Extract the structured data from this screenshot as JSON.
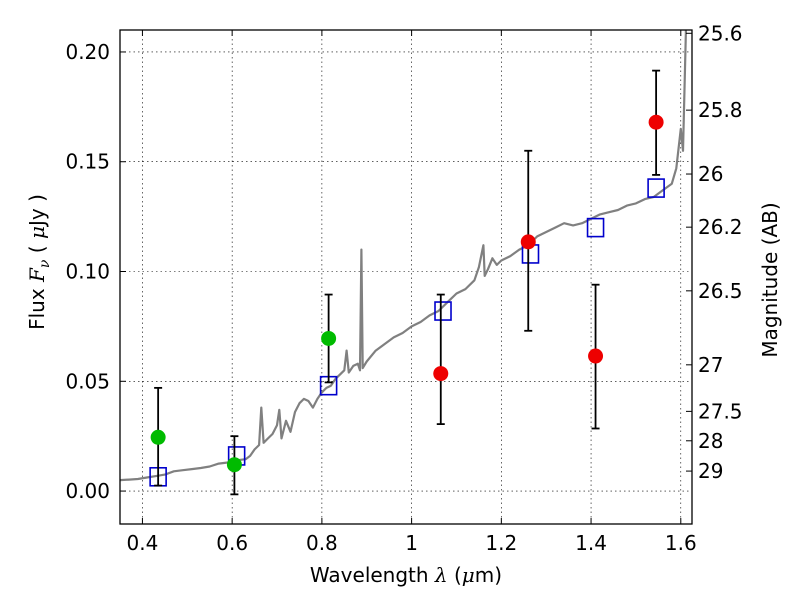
{
  "chart_data": {
    "type": "scatter",
    "title": "",
    "xlabel": {
      "prefix": "Wavelength ",
      "symbol": "λ",
      "open": " (",
      "unit_mu": "μ",
      "unit_rest": "m)"
    },
    "ylabel": {
      "prefix": "Flux ",
      "symbol": "F",
      "sub": "ν",
      "open": " ( ",
      "unit_mu": "μ",
      "unit_rest": "Jy )"
    },
    "ylabel_right": "Magnitude (AB)",
    "xlim": [
      0.35,
      1.625
    ],
    "ylim": [
      -0.015,
      0.21
    ],
    "grid": true,
    "x_ticks": [
      {
        "value": 0.4,
        "label": "0.4"
      },
      {
        "value": 0.6,
        "label": "0.6"
      },
      {
        "value": 0.8,
        "label": "0.8"
      },
      {
        "value": 1.0,
        "label": "1"
      },
      {
        "value": 1.2,
        "label": "1.2"
      },
      {
        "value": 1.4,
        "label": "1.4"
      },
      {
        "value": 1.6,
        "label": "1.6"
      }
    ],
    "y_ticks": [
      {
        "value": 0.0,
        "label": "0.00"
      },
      {
        "value": 0.05,
        "label": "0.05"
      },
      {
        "value": 0.1,
        "label": "0.10"
      },
      {
        "value": 0.15,
        "label": "0.15"
      },
      {
        "value": 0.2,
        "label": "0.20"
      }
    ],
    "right_ticks": [
      {
        "flux": 0.2085,
        "label": "25.6"
      },
      {
        "flux": 0.1735,
        "label": "25.8"
      },
      {
        "flux": 0.1444,
        "label": "26"
      },
      {
        "flux": 0.1202,
        "label": "26.2"
      },
      {
        "flux": 0.0912,
        "label": "26.5"
      },
      {
        "flux": 0.0575,
        "label": "27"
      },
      {
        "flux": 0.0363,
        "label": "27.5"
      },
      {
        "flux": 0.0229,
        "label": "28"
      },
      {
        "flux": 0.0091,
        "label": "29"
      }
    ],
    "series": [
      {
        "kind": "line",
        "color": "#808080",
        "points": [
          [
            0.35,
            0.005
          ],
          [
            0.37,
            0.0052
          ],
          [
            0.39,
            0.0055
          ],
          [
            0.41,
            0.0062
          ],
          [
            0.43,
            0.0068
          ],
          [
            0.45,
            0.0075
          ],
          [
            0.47,
            0.009
          ],
          [
            0.49,
            0.0095
          ],
          [
            0.51,
            0.01
          ],
          [
            0.53,
            0.0105
          ],
          [
            0.55,
            0.0112
          ],
          [
            0.57,
            0.0125
          ],
          [
            0.59,
            0.013
          ],
          [
            0.61,
            0.014
          ],
          [
            0.63,
            0.0145
          ],
          [
            0.64,
            0.016
          ],
          [
            0.65,
            0.019
          ],
          [
            0.66,
            0.021
          ],
          [
            0.665,
            0.038
          ],
          [
            0.67,
            0.022
          ],
          [
            0.68,
            0.024
          ],
          [
            0.69,
            0.026
          ],
          [
            0.7,
            0.03
          ],
          [
            0.705,
            0.037
          ],
          [
            0.71,
            0.024
          ],
          [
            0.72,
            0.032
          ],
          [
            0.73,
            0.027
          ],
          [
            0.74,
            0.036
          ],
          [
            0.75,
            0.04
          ],
          [
            0.76,
            0.042
          ],
          [
            0.77,
            0.041
          ],
          [
            0.78,
            0.038
          ],
          [
            0.79,
            0.042
          ],
          [
            0.8,
            0.045
          ],
          [
            0.81,
            0.047
          ],
          [
            0.82,
            0.048
          ],
          [
            0.83,
            0.051
          ],
          [
            0.84,
            0.053
          ],
          [
            0.85,
            0.055
          ],
          [
            0.855,
            0.064
          ],
          [
            0.86,
            0.054
          ],
          [
            0.87,
            0.057
          ],
          [
            0.88,
            0.058
          ],
          [
            0.885,
            0.055
          ],
          [
            0.888,
            0.11
          ],
          [
            0.891,
            0.056
          ],
          [
            0.9,
            0.059
          ],
          [
            0.92,
            0.064
          ],
          [
            0.94,
            0.067
          ],
          [
            0.96,
            0.07
          ],
          [
            0.98,
            0.072
          ],
          [
            1.0,
            0.075
          ],
          [
            1.02,
            0.077
          ],
          [
            1.04,
            0.08
          ],
          [
            1.06,
            0.082
          ],
          [
            1.08,
            0.086
          ],
          [
            1.1,
            0.09
          ],
          [
            1.12,
            0.092
          ],
          [
            1.14,
            0.096
          ],
          [
            1.15,
            0.102
          ],
          [
            1.16,
            0.112
          ],
          [
            1.163,
            0.098
          ],
          [
            1.17,
            0.101
          ],
          [
            1.18,
            0.106
          ],
          [
            1.19,
            0.103
          ],
          [
            1.2,
            0.105
          ],
          [
            1.22,
            0.107
          ],
          [
            1.24,
            0.11
          ],
          [
            1.26,
            0.112
          ],
          [
            1.28,
            0.116
          ],
          [
            1.3,
            0.118
          ],
          [
            1.32,
            0.12
          ],
          [
            1.34,
            0.122
          ],
          [
            1.36,
            0.121
          ],
          [
            1.38,
            0.122
          ],
          [
            1.4,
            0.124
          ],
          [
            1.42,
            0.126
          ],
          [
            1.44,
            0.127
          ],
          [
            1.46,
            0.128
          ],
          [
            1.48,
            0.13
          ],
          [
            1.5,
            0.131
          ],
          [
            1.52,
            0.133
          ],
          [
            1.54,
            0.134
          ],
          [
            1.56,
            0.137
          ],
          [
            1.58,
            0.14
          ],
          [
            1.59,
            0.147
          ],
          [
            1.6,
            0.165
          ],
          [
            1.605,
            0.155
          ],
          [
            1.612,
            0.215
          ],
          [
            1.62,
            0.21
          ]
        ]
      },
      {
        "kind": "squares",
        "color": "#0000cc",
        "points": [
          [
            0.435,
            0.0065
          ],
          [
            0.61,
            0.016
          ],
          [
            0.815,
            0.048
          ],
          [
            1.07,
            0.082
          ],
          [
            1.265,
            0.108
          ],
          [
            1.41,
            0.12
          ],
          [
            1.545,
            0.138
          ]
        ]
      },
      {
        "kind": "points",
        "color": "#00bb00",
        "points": [
          {
            "x": 0.435,
            "y": 0.0245,
            "lo": 0.0025,
            "hi": 0.047
          },
          {
            "x": 0.605,
            "y": 0.012,
            "lo": -0.0015,
            "hi": 0.025
          },
          {
            "x": 0.815,
            "y": 0.0695,
            "lo": 0.0495,
            "hi": 0.0895
          }
        ]
      },
      {
        "kind": "points",
        "color": "#ee0000",
        "points": [
          {
            "x": 1.065,
            "y": 0.0535,
            "lo": 0.0305,
            "hi": 0.0895
          },
          {
            "x": 1.26,
            "y": 0.1135,
            "lo": 0.073,
            "hi": 0.155
          },
          {
            "x": 1.41,
            "y": 0.0615,
            "lo": 0.0285,
            "hi": 0.094
          },
          {
            "x": 1.545,
            "y": 0.168,
            "lo": 0.144,
            "hi": 0.1915
          }
        ]
      }
    ]
  }
}
